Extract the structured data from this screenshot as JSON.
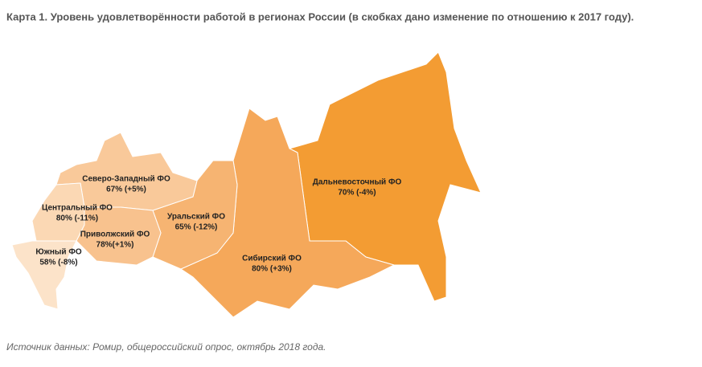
{
  "title": "Карта 1. Уровень удовлетворённости работой в регионах России (в скобках дано изменение по отношению к 2017 году).",
  "regions": [
    {
      "name": "Северо-Западный ФО",
      "label": "67% (+5%)"
    },
    {
      "name": "Центральный ФО",
      "label": "80% (-11%)"
    },
    {
      "name": "Приволжский ФО",
      "label": "78%(+1%)"
    },
    {
      "name": "Южный ФО",
      "label": "58% (-8%)"
    },
    {
      "name": "Уральский ФО",
      "label": "65% (-12%)"
    },
    {
      "name": "Сибирский ФО",
      "label": "80% (+3%)"
    },
    {
      "name": "Дальневосточный ФО",
      "label": "70% (-4%)"
    }
  ],
  "source": "Источник данных: Ромир, общероссийский опрос, октябрь 2018 года."
}
